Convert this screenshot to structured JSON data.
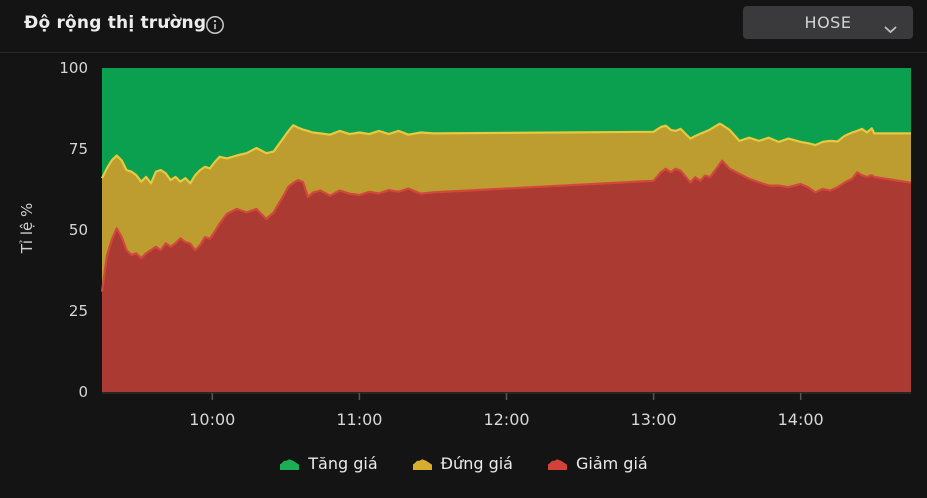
{
  "header": {
    "title": "Độ rộng thị trường",
    "info_icon": "info-circle",
    "exchange_selector": {
      "value": "HOSE"
    }
  },
  "chart_data": {
    "type": "area",
    "stacked": true,
    "unit": "%",
    "title": "Độ rộng thị trường",
    "ylabel": "Tỉ lệ %",
    "ylim": [
      0,
      100
    ],
    "y_ticks": [
      100,
      75,
      50,
      25,
      0
    ],
    "x_ticks": [
      "10:00",
      "11:00",
      "12:00",
      "13:00",
      "14:00"
    ],
    "time_range": [
      "09:15",
      "14:45"
    ],
    "grid": false,
    "legend_position": "bottom",
    "stack_order_bottom_to_top": [
      "Giảm giá",
      "Đứng giá",
      "Tăng giá"
    ],
    "x": [
      "09:15",
      "09:17",
      "09:19",
      "09:21",
      "09:23",
      "09:25",
      "09:27",
      "09:29",
      "09:31",
      "09:33",
      "09:35",
      "09:37",
      "09:39",
      "09:41",
      "09:43",
      "09:45",
      "09:47",
      "09:49",
      "09:51",
      "09:53",
      "09:55",
      "09:57",
      "09:59",
      "10:01",
      "10:03",
      "10:06",
      "10:10",
      "10:14",
      "10:18",
      "10:22",
      "10:25",
      "10:27",
      "10:29",
      "10:31",
      "10:33",
      "10:35",
      "10:37",
      "10:39",
      "10:41",
      "10:44",
      "10:48",
      "10:52",
      "10:56",
      "11:00",
      "11:04",
      "11:08",
      "11:12",
      "11:16",
      "11:20",
      "11:25",
      "11:30",
      "13:00",
      "13:03",
      "13:05",
      "13:07",
      "13:09",
      "13:11",
      "13:15",
      "13:17",
      "13:19",
      "13:21",
      "13:23",
      "13:25",
      "13:27",
      "13:28",
      "13:31",
      "13:35",
      "13:39",
      "13:43",
      "13:47",
      "13:51",
      "13:55",
      "14:00",
      "14:03",
      "14:06",
      "14:09",
      "14:12",
      "14:15",
      "14:18",
      "14:21",
      "14:23",
      "14:25",
      "14:27",
      "14:29",
      "14:30",
      "14:45"
    ],
    "series": [
      {
        "name": "Tăng giá",
        "fill": "#0aa04f",
        "line": "#0fa854",
        "values": [
          34,
          31,
          28.5,
          27,
          28.5,
          31.5,
          32,
          33.1,
          35.1,
          33.6,
          35.6,
          32,
          31.5,
          32.5,
          34.6,
          33.6,
          35.1,
          34,
          35.6,
          33.1,
          31.5,
          30.5,
          31,
          29,
          27.4,
          27.9,
          27,
          26.3,
          24.7,
          26.3,
          25.8,
          23.7,
          21.6,
          19.5,
          17.7,
          18.4,
          19,
          19.4,
          19.9,
          20.2,
          20.6,
          19.4,
          20.4,
          19.9,
          20.4,
          19.4,
          20.4,
          19.4,
          20.6,
          19.9,
          20.2,
          19.7,
          18.2,
          17.8,
          19.1,
          19.4,
          18.8,
          21.8,
          21,
          20.3,
          19.7,
          19,
          18.1,
          17.2,
          17.6,
          19.1,
          22.5,
          21.5,
          22.5,
          21.5,
          22.8,
          21.8,
          22.8,
          23.2,
          23.8,
          22.8,
          22.5,
          22.7,
          20.9,
          19.9,
          19.4,
          18.8,
          19.9,
          18.6,
          20.2,
          20.2
        ]
      },
      {
        "name": "Đứng giá",
        "fill": "#bd9c30",
        "line": "#e8c93f",
        "values": [
          35,
          27,
          24.5,
          22.5,
          23.6,
          24.7,
          25.7,
          24.1,
          23.6,
          23.6,
          20.6,
          23.2,
          24.7,
          21.6,
          20.6,
          20.5,
          17.5,
          19.7,
          18.6,
          23.1,
          23.2,
          21.7,
          21.7,
          21.5,
          20.6,
          17.1,
          16.5,
          18.3,
          18.8,
          20.3,
          18.8,
          18.3,
          17.9,
          17.2,
          17.8,
          16.2,
          16.2,
          20.4,
          18.6,
          17.6,
          18.8,
          18.4,
          18.4,
          19.3,
          17.8,
          19.3,
          17.3,
          18.8,
          16.6,
          18.9,
          18.2,
          15.1,
          14,
          13.3,
          13.1,
          11.7,
          12.9,
          13.5,
          12.7,
          14.5,
          13.5,
          14.7,
          13.6,
          12.4,
          11,
          12,
          10.2,
          12.7,
          12.8,
          14.8,
          13.5,
          15,
          13,
          13.6,
          14.6,
          14.5,
          15.3,
          14.1,
          14.4,
          14.3,
          12.8,
          14.3,
          13.7,
          14.5,
          13.4,
          15.2
        ]
      },
      {
        "name": "Giảm giá",
        "fill": "#ab3a33",
        "line": "#d2493c",
        "values": [
          31,
          42,
          47,
          50.5,
          47.9,
          43.8,
          42.3,
          42.8,
          41.3,
          42.8,
          43.8,
          44.8,
          43.8,
          45.9,
          44.8,
          45.9,
          47.4,
          46.3,
          45.8,
          43.8,
          45.3,
          47.8,
          47.3,
          49.5,
          52,
          55,
          56.5,
          55.4,
          56.5,
          53.4,
          55.4,
          58,
          60.5,
          63.3,
          64.5,
          65.4,
          64.8,
          60.2,
          61.5,
          62.2,
          60.6,
          62.2,
          61.2,
          60.8,
          61.8,
          61.3,
          62.3,
          61.8,
          62.8,
          61.2,
          61.6,
          65.2,
          67.8,
          68.9,
          67.8,
          68.9,
          68.3,
          64.7,
          66.3,
          65.2,
          66.8,
          66.3,
          68.3,
          70.4,
          71.4,
          68.9,
          67.3,
          65.8,
          64.7,
          63.7,
          63.7,
          63.2,
          64.2,
          63.2,
          61.6,
          62.7,
          62.2,
          63.2,
          64.7,
          65.8,
          67.8,
          66.9,
          66.4,
          66.9,
          66.4,
          64.6
        ]
      }
    ]
  },
  "legend": [
    {
      "label": "Tăng giá",
      "color": "#1cae55"
    },
    {
      "label": "Đứng giá",
      "color": "#d6ad2d"
    },
    {
      "label": "Giảm giá",
      "color": "#d2423a"
    }
  ]
}
